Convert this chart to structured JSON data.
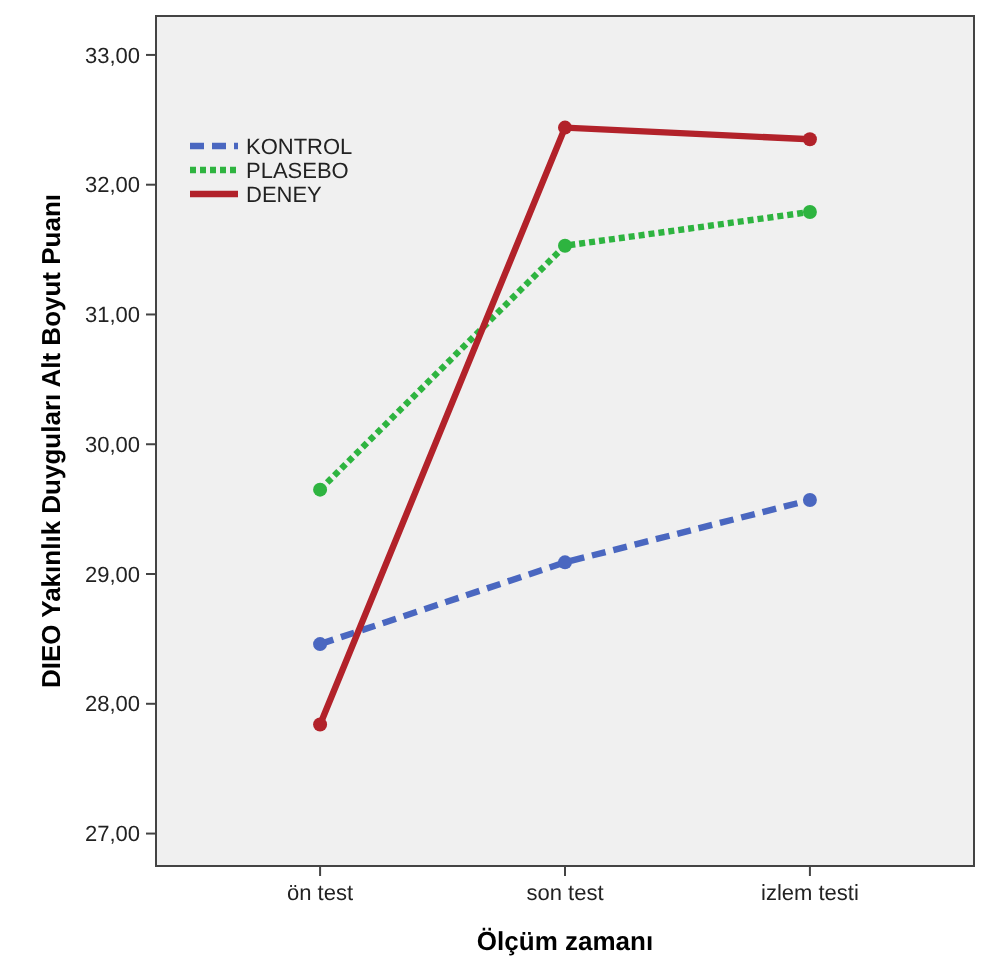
{
  "chart_data": {
    "type": "line",
    "xlabel": "Ölçüm zamanı",
    "ylabel": "DIEO Yakınlık Duyguları Alt Boyut Puanı",
    "categories": [
      "ön test",
      "son test",
      "izlem testi"
    ],
    "ylim": [
      26.75,
      33.3
    ],
    "yticks": [
      {
        "value": 27,
        "label": "27,00"
      },
      {
        "value": 28,
        "label": "28,00"
      },
      {
        "value": 29,
        "label": "29,00"
      },
      {
        "value": 30,
        "label": "30,00"
      },
      {
        "value": 31,
        "label": "31,00"
      },
      {
        "value": 32,
        "label": "32,00"
      },
      {
        "value": 33,
        "label": "33,00"
      }
    ],
    "grid": false,
    "legend": "top left",
    "marker": "circle",
    "series": [
      {
        "name": "KONTROL",
        "color": "#4a67c0",
        "line_style": "dashed",
        "values": [
          28.46,
          29.09,
          29.57
        ]
      },
      {
        "name": "PLASEBO",
        "color": "#2eb440",
        "line_style": "dotted",
        "values": [
          29.65,
          31.53,
          31.79
        ]
      },
      {
        "name": "DENEY",
        "color": "#b2222a",
        "line_style": "solid",
        "values": [
          27.84,
          32.44,
          32.35
        ]
      }
    ]
  }
}
